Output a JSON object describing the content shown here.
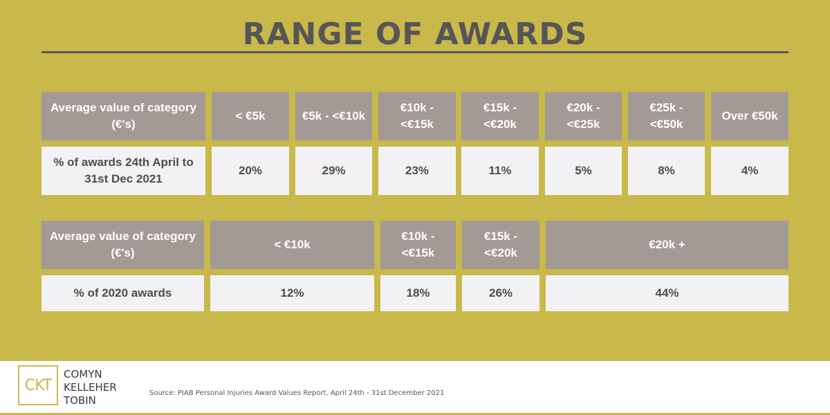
{
  "title": "RANGE OF AWARDS",
  "table1": {
    "header_label": "Average value of category (€'s)",
    "columns": [
      "< €5k",
      "€5k - <€10k",
      "€10k - <€15k",
      "€15k - <€20k",
      "€20k - <€25k",
      "€25k - <€50k",
      "Over €50k"
    ],
    "row_label": "% of awards 24th April to 31st Dec 2021",
    "values": [
      "20%",
      "29%",
      "23%",
      "11%",
      "5%",
      "8%",
      "4%"
    ]
  },
  "table2": {
    "header_label": "Average value of category (€'s)",
    "columns": [
      "< €10k",
      "€10k - <€15k",
      "€15k - <€20k",
      "€20k +"
    ],
    "row_label": "% of 2020 awards",
    "values": [
      "12%",
      "18%",
      "26%",
      "44%"
    ]
  },
  "footer": {
    "logo_mark": "CKT",
    "logo_lines": [
      "COMYN",
      "KELLEHER",
      "TOBIN"
    ],
    "source": "Source: PIAB Personal Injuries Award Values Report, April 24th - 31st December 2021"
  },
  "colors": {
    "background_gold": "#c9b84a",
    "header_grey": "#a39a95",
    "value_light": "#f2f2f4",
    "title_grey": "#565656"
  }
}
